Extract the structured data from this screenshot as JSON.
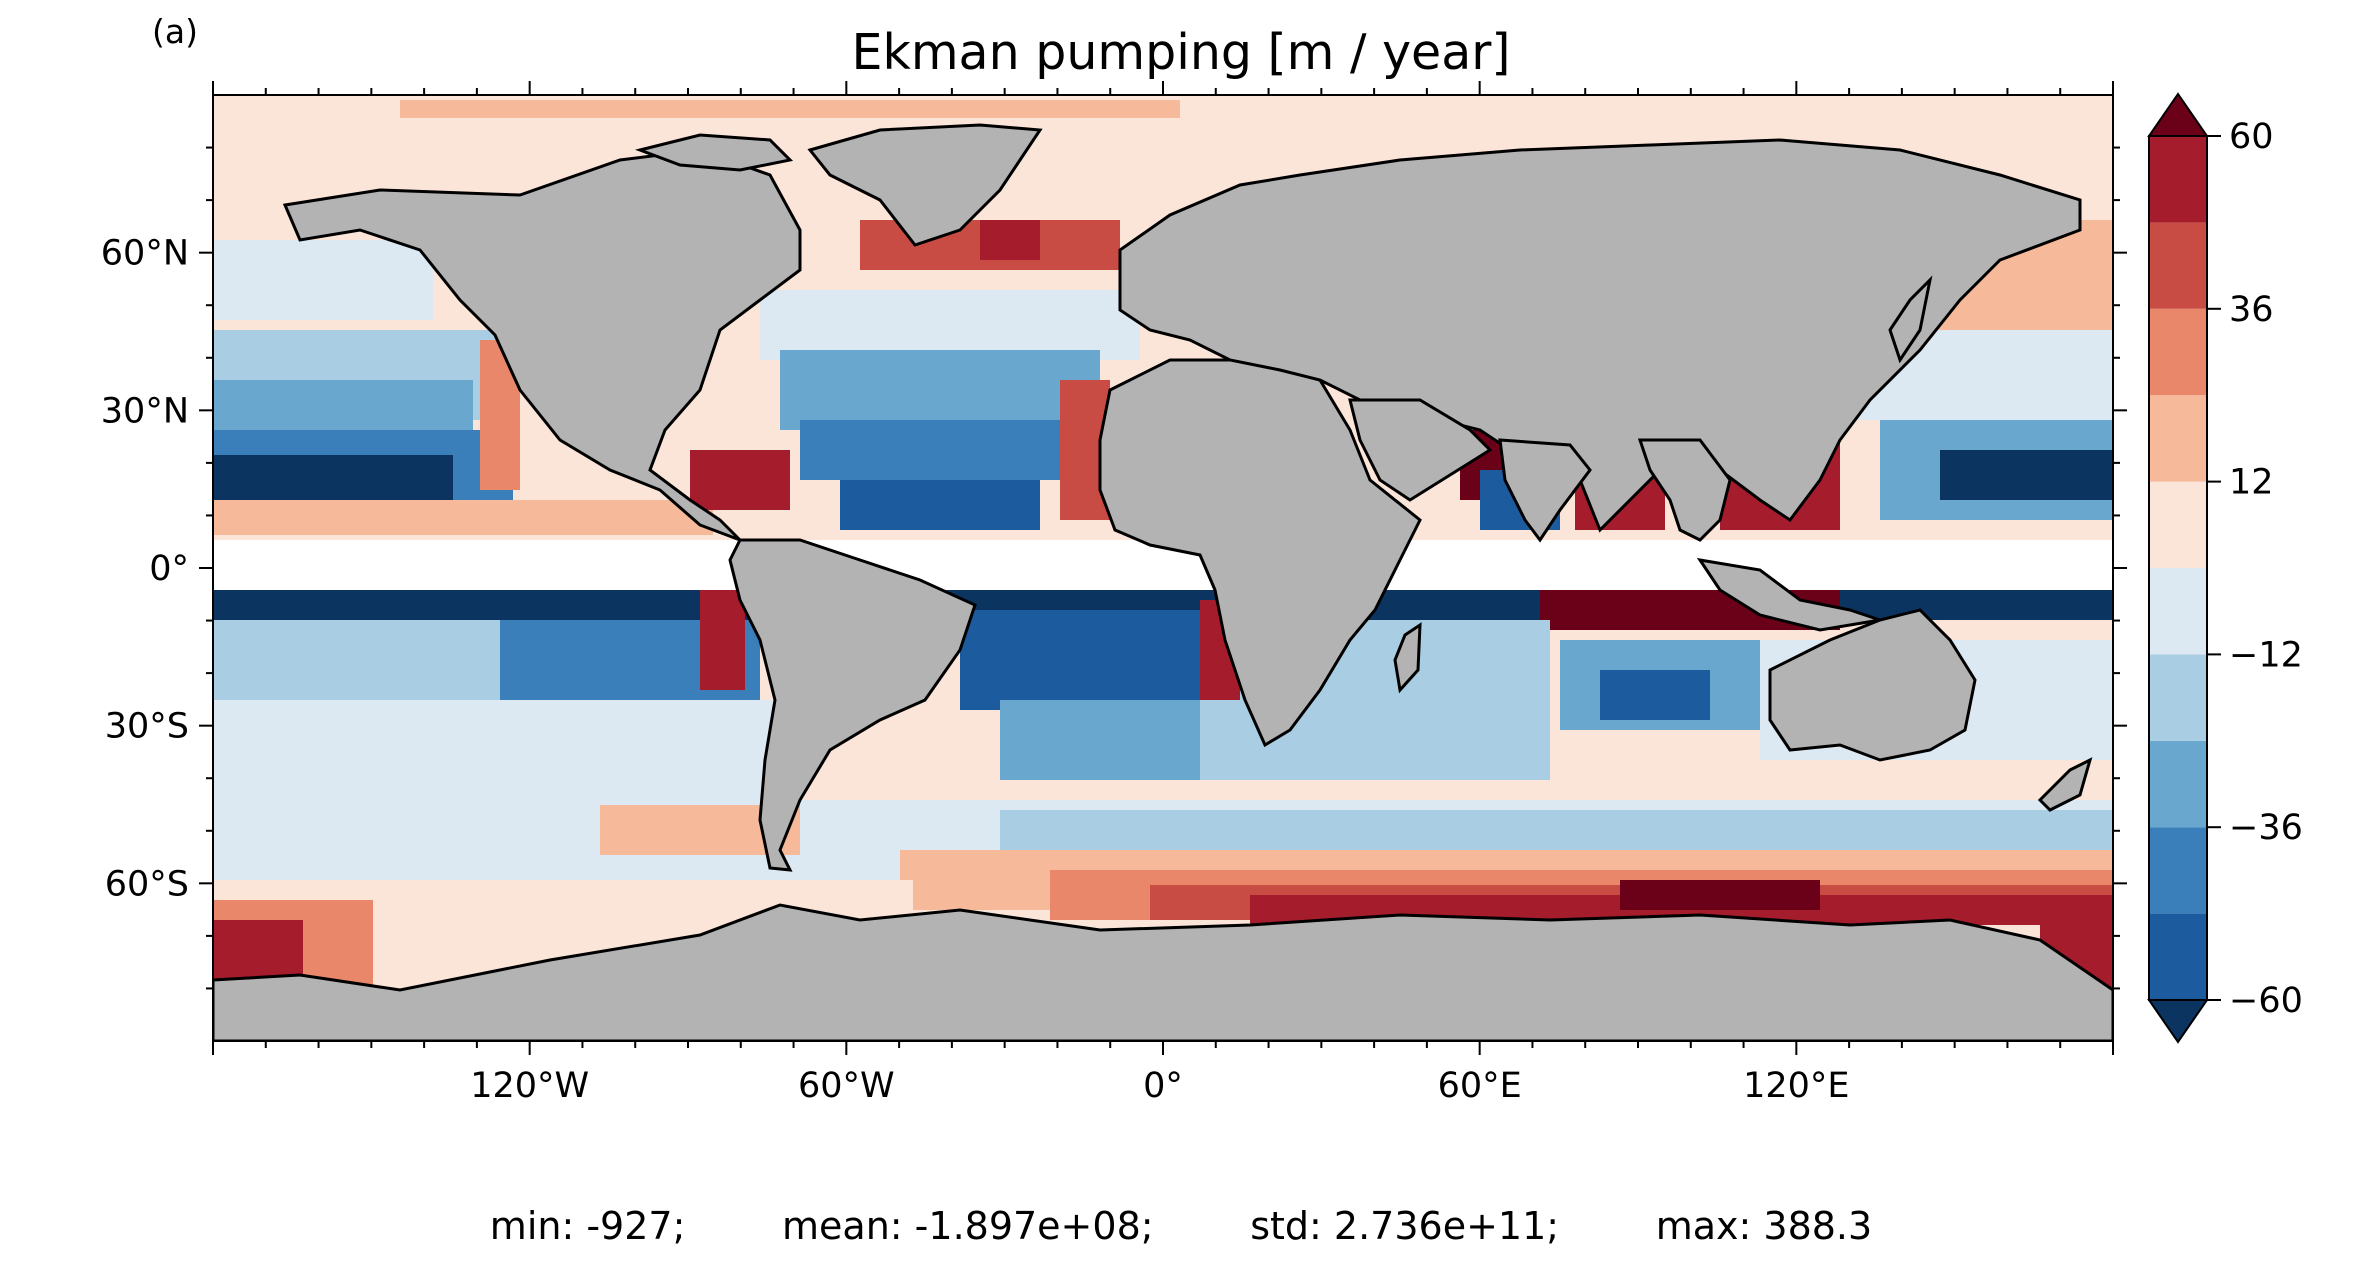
{
  "panel_label": "(a)",
  "title": "Ekman pumping [m / year]",
  "lat_ticks": [
    {
      "lat": 60,
      "label": "60°N"
    },
    {
      "lat": 30,
      "label": "30°N"
    },
    {
      "lat": 0,
      "label": "0°"
    },
    {
      "lat": -30,
      "label": "30°S"
    },
    {
      "lat": -60,
      "label": "60°S"
    }
  ],
  "lon_ticks": [
    {
      "lon": -120,
      "label": "120°W"
    },
    {
      "lon": -60,
      "label": "60°W"
    },
    {
      "lon": 0,
      "label": "0°"
    },
    {
      "lon": 60,
      "label": "60°E"
    },
    {
      "lon": 120,
      "label": "120°E"
    }
  ],
  "extent": {
    "lon_min": -180,
    "lon_max": 180,
    "lat_min": -90,
    "lat_max": 90
  },
  "colorbar": {
    "levels": [
      -60,
      -48,
      -36,
      -24,
      -12,
      0,
      12,
      24,
      36,
      48,
      60
    ],
    "tick_labels": [
      {
        "value": 60,
        "label": "60"
      },
      {
        "value": 36,
        "label": "36"
      },
      {
        "value": 12,
        "label": "12"
      },
      {
        "value": -12,
        "label": "−12"
      },
      {
        "value": -36,
        "label": "−36"
      },
      {
        "value": -60,
        "label": "−60"
      }
    ],
    "colors": [
      "#1c5c9e",
      "#3a7fb9",
      "#6aa7cf",
      "#a9cde3",
      "#dce9f2",
      "#fbe5d9",
      "#f6b999",
      "#e8876a",
      "#c84c44",
      "#a51c2d"
    ],
    "under_color": "#0b3461",
    "over_color": "#6b0019",
    "extend": "both"
  },
  "land_color": "#b3b3b3",
  "stats": {
    "min": "min: -927;",
    "mean": "mean: -1.897e+08;",
    "std": "std: 2.736e+11;",
    "max": "max: 388.3"
  }
}
